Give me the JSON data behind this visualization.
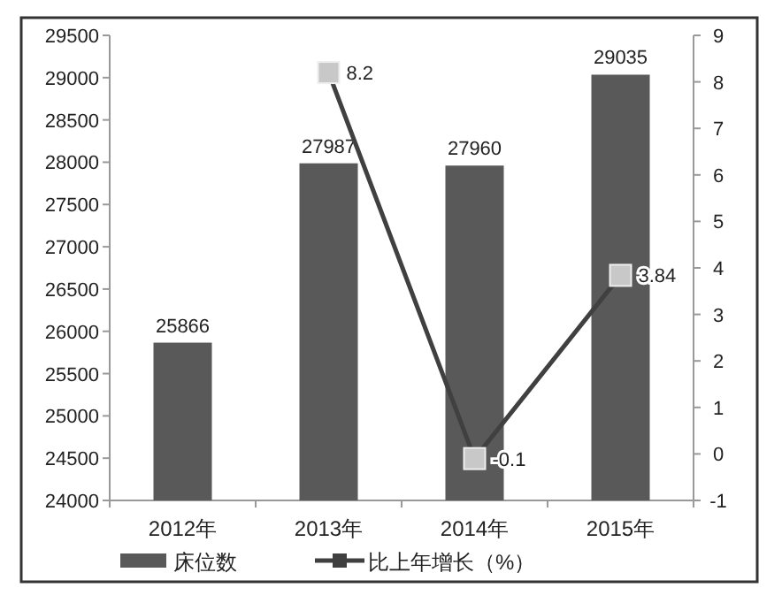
{
  "chart_data": {
    "type": "bar",
    "categories": [
      "2012年",
      "2013年",
      "2014年",
      "2015年"
    ],
    "series": [
      {
        "name": "床位数",
        "color": "#595959",
        "values": [
          25866,
          27987,
          27960,
          29035
        ]
      },
      {
        "name": "比上年增长（%）",
        "type": "line",
        "axis": "y2",
        "color": "#404040",
        "marker": "square",
        "values": [
          null,
          8.2,
          -0.1,
          3.84
        ]
      }
    ],
    "ylim": [
      24000,
      29500
    ],
    "yticks": [
      24000,
      24500,
      25000,
      25500,
      26000,
      26500,
      27000,
      27500,
      28000,
      28500,
      29000,
      29500
    ],
    "y2lim": [
      -1,
      9
    ],
    "y2ticks": [
      -1,
      0,
      1,
      2,
      3,
      4,
      5,
      6,
      7,
      8,
      9
    ],
    "data_labels": true,
    "legend": "bottom",
    "grid": false
  }
}
